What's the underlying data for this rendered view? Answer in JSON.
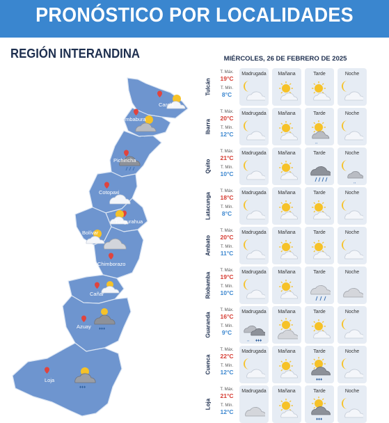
{
  "header": {
    "title": "PRONÓSTICO POR LOCALIDADES"
  },
  "region": {
    "title": "REGIÓN INTERANDINA"
  },
  "forecast": {
    "date": "MIÉRCOLES, 26 DE FEBRERO DE 2025",
    "max_label": "T. Máx.",
    "min_label": "T. Mín.",
    "periods": [
      "Madrugada",
      "Mañana",
      "Tarde",
      "Noche"
    ],
    "rows": [
      {
        "city": "Tulcán",
        "max": "19°C",
        "min": "8°C",
        "icons": [
          "moon-cloud-icon",
          "sun-cloud-icon",
          "sun-cloud-icon",
          "moon-cloud-icon"
        ]
      },
      {
        "city": "Ibarra",
        "max": "20°C",
        "min": "12°C",
        "icons": [
          "moon-cloud-icon",
          "sun-cloud-icon",
          "sun-cloud-drizzle-icon",
          "moon-cloud-icon"
        ]
      },
      {
        "city": "Quito",
        "max": "21°C",
        "min": "10°C",
        "icons": [
          "moon-cloud-icon",
          "sun-cloud-icon",
          "storm-cloud-rain-icon",
          "moon-cloud-drizzle-icon"
        ]
      },
      {
        "city": "Latacunga",
        "max": "18°C",
        "min": "8°C",
        "icons": [
          "moon-cloud-icon",
          "sun-cloud-icon",
          "sun-cloud-icon",
          "moon-cloud-icon"
        ]
      },
      {
        "city": "Ambato",
        "max": "20°C",
        "min": "11°C",
        "icons": [
          "moon-cloud-icon",
          "sun-cloud-icon",
          "sun-cloud-icon",
          "moon-cloud-icon"
        ]
      },
      {
        "city": "Riobamba",
        "max": "19°C",
        "min": "10°C",
        "icons": [
          "moon-cloud-icon",
          "sun-cloud-icon",
          "cloud-rain-icon",
          "cloudy-icon"
        ]
      },
      {
        "city": "Guaranda",
        "max": "16°C",
        "min": "9°C",
        "icons": [
          "dark-clouds-rain-icon",
          "sun-behind-cloud-icon",
          "sun-cloud-icon",
          "moon-cloud-icon"
        ]
      },
      {
        "city": "Cuenca",
        "max": "22°C",
        "min": "12°C",
        "icons": [
          "moon-cloud-icon",
          "sun-cloud-icon",
          "sun-dark-cloud-rain-icon",
          "moon-cloud-icon"
        ]
      },
      {
        "city": "Loja",
        "max": "21°C",
        "min": "12°C",
        "icons": [
          "cloudy-icon",
          "sun-cloud-icon",
          "sun-dark-cloud-rain-icon",
          "moon-cloud-icon"
        ]
      }
    ]
  },
  "map": {
    "labels": [
      "Carchi",
      "Imbabura",
      "Pichincha",
      "Cotopaxi",
      "Tungurahua",
      "Chimborazo",
      "Cañar",
      "Azuay",
      "Loja",
      "Bolívar"
    ],
    "colors": {
      "province": "#6e95cf",
      "border": "#dbe5f3",
      "pin": "#e0443e",
      "accent": "#3a86cf"
    }
  }
}
